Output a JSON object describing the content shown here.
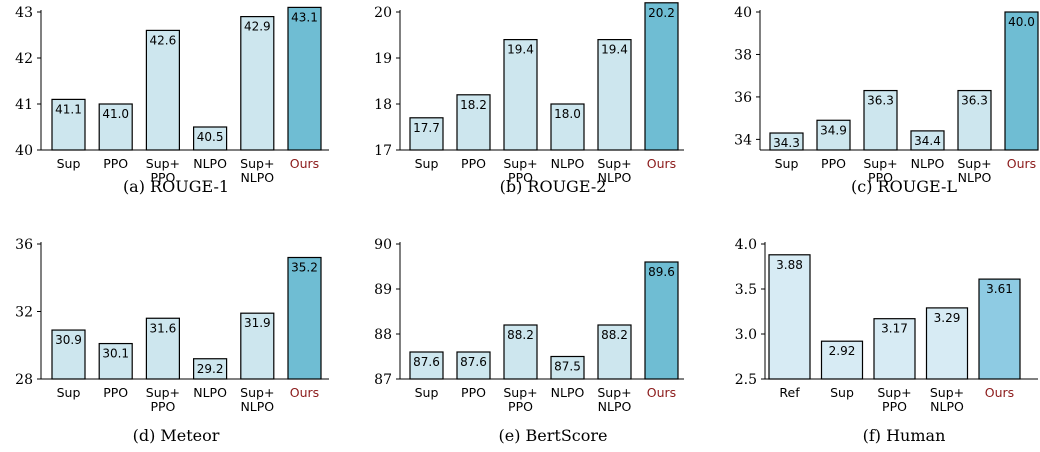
{
  "chart_data": [
    {
      "type": "bar",
      "caption": "(a) ROUGE-1",
      "ylim": [
        40,
        43
      ],
      "yticks": [
        40,
        41,
        42,
        43
      ],
      "tick_labels": [
        "40",
        "41",
        "42",
        "43"
      ],
      "categories": [
        [
          "Sup"
        ],
        [
          "PPO"
        ],
        [
          "Sup+",
          "PPO"
        ],
        [
          "NLPO"
        ],
        [
          "Sup+",
          "NLPO"
        ],
        [
          "Ours"
        ]
      ],
      "values": [
        41.1,
        41.0,
        42.6,
        40.5,
        42.9,
        43.1
      ],
      "value_labels": [
        "41.1",
        "41.0",
        "42.6",
        "40.5",
        "42.9",
        "43.1"
      ]
    },
    {
      "type": "bar",
      "caption": "(b) ROUGE-2",
      "ylim": [
        17,
        20
      ],
      "yticks": [
        17,
        18,
        19,
        20
      ],
      "tick_labels": [
        "17",
        "18",
        "19",
        "20"
      ],
      "categories": [
        [
          "Sup"
        ],
        [
          "PPO"
        ],
        [
          "Sup+",
          "PPO"
        ],
        [
          "NLPO"
        ],
        [
          "Sup+",
          "NLPO"
        ],
        [
          "Ours"
        ]
      ],
      "values": [
        17.7,
        18.2,
        19.4,
        18.0,
        19.4,
        20.2
      ],
      "value_labels": [
        "17.7",
        "18.2",
        "19.4",
        "18.0",
        "19.4",
        "20.2"
      ]
    },
    {
      "type": "bar",
      "caption": "(c) ROUGE-L",
      "ylim": [
        33.5,
        40
      ],
      "yticks": [
        34,
        36,
        38,
        40
      ],
      "tick_labels": [
        "34",
        "36",
        "38",
        "40"
      ],
      "categories": [
        [
          "Sup"
        ],
        [
          "PPO"
        ],
        [
          "Sup+",
          "PPO"
        ],
        [
          "NLPO"
        ],
        [
          "Sup+",
          "NLPO"
        ],
        [
          "Ours"
        ]
      ],
      "values": [
        34.3,
        34.9,
        36.3,
        34.4,
        36.3,
        40.0
      ],
      "value_labels": [
        "34.3",
        "34.9",
        "36.3",
        "34.4",
        "36.3",
        "40.0"
      ]
    },
    {
      "type": "bar",
      "caption": "(d) Meteor",
      "ylim": [
        28,
        36
      ],
      "yticks": [
        28,
        32,
        36
      ],
      "tick_labels": [
        "28",
        "32",
        "36"
      ],
      "categories": [
        [
          "Sup"
        ],
        [
          "PPO"
        ],
        [
          "Sup+",
          "PPO"
        ],
        [
          "NLPO"
        ],
        [
          "Sup+",
          "NLPO"
        ],
        [
          "Ours"
        ]
      ],
      "values": [
        30.9,
        30.1,
        31.6,
        29.2,
        31.9,
        35.2
      ],
      "value_labels": [
        "30.9",
        "30.1",
        "31.6",
        "29.2",
        "31.9",
        "35.2"
      ]
    },
    {
      "type": "bar",
      "caption": "(e) BertScore",
      "ylim": [
        87,
        90
      ],
      "yticks": [
        87,
        88,
        89,
        90
      ],
      "tick_labels": [
        "87",
        "88",
        "89",
        "90"
      ],
      "categories": [
        [
          "Sup"
        ],
        [
          "PPO"
        ],
        [
          "Sup+",
          "PPO"
        ],
        [
          "NLPO"
        ],
        [
          "Sup+",
          "NLPO"
        ],
        [
          "Ours"
        ]
      ],
      "values": [
        87.6,
        87.6,
        88.2,
        87.5,
        88.2,
        89.6
      ],
      "value_labels": [
        "87.6",
        "87.6",
        "88.2",
        "87.5",
        "88.2",
        "89.6"
      ]
    },
    {
      "type": "bar",
      "caption": "(f) Human",
      "ylim": [
        2.5,
        4.0
      ],
      "yticks": [
        2.5,
        3.0,
        3.5,
        4.0
      ],
      "tick_labels": [
        "2.5",
        "3.0",
        "3.5",
        "4.0"
      ],
      "categories": [
        [
          "Ref"
        ],
        [
          "Sup"
        ],
        [
          "Sup+",
          "PPO"
        ],
        [
          "Sup+",
          "NLPO"
        ],
        [
          "Ours"
        ]
      ],
      "values": [
        3.88,
        2.92,
        3.17,
        3.29,
        3.61
      ],
      "value_labels": [
        "3.88",
        "2.92",
        "3.17",
        "3.29",
        "3.61"
      ]
    }
  ],
  "colors": {
    "baseline_bar": "#cde6ee",
    "ours_bar": "#6fbdd3",
    "human_bar": "#d7ebf4",
    "human_ours_bar": "#8ecbe3",
    "ours_label": "#8b1a1a",
    "axis": "#000000"
  }
}
